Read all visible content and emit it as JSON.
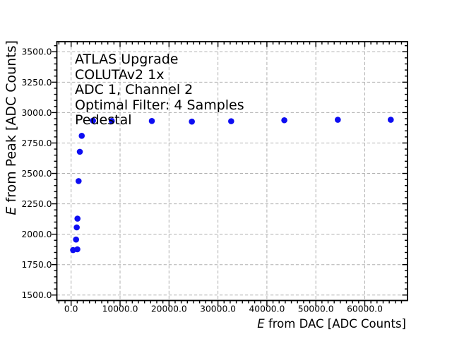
{
  "figure": {
    "background": "#ffffff"
  },
  "annotation": {
    "lines": [
      "ATLAS Upgrade",
      "COLUTAv2 1x",
      "ADC 1, Channel 2",
      "Optimal Filter: 4 Samples",
      "Pedestal"
    ]
  },
  "axes": {
    "x_label_em": "E",
    "x_label_rest": " from DAC [ADC Counts]",
    "y_label_em": "E",
    "y_label_rest": " from Peak [ADC Counts]"
  },
  "chart_data": {
    "type": "scatter",
    "title": "",
    "xlabel": "E from DAC [ADC Counts]",
    "ylabel": "E from Peak [ADC Counts]",
    "x_range": [
      -2915,
      68730
    ],
    "y_range": [
      1455,
      3583
    ],
    "x_ticks": [
      0,
      10000,
      20000,
      30000,
      40000,
      50000,
      60000
    ],
    "x_tick_labels": [
      "0.0",
      "10000.0",
      "20000.0",
      "30000.0",
      "40000.0",
      "50000.0",
      "60000.0"
    ],
    "y_ticks": [
      1500,
      1750,
      2000,
      2250,
      2500,
      2750,
      3000,
      3250,
      3500
    ],
    "y_tick_labels": [
      "1500.0",
      "1750.0",
      "2000.0",
      "2250.0",
      "2500.0",
      "2750.0",
      "3000.0",
      "3250.0",
      "3500.0"
    ],
    "x_minor_step": 1250,
    "y_minor_step": 50,
    "grid": "major-dashed",
    "grid_color": "#b0b0b0",
    "axis_color": "#000000",
    "series": [
      {
        "name": "peak-vs-dac",
        "marker_color": "#0d0df2",
        "points": [
          [
            400,
            1870
          ],
          [
            1270,
            1876
          ],
          [
            1010,
            1956
          ],
          [
            1150,
            2056
          ],
          [
            1300,
            2128
          ],
          [
            1530,
            2437
          ],
          [
            1780,
            2678
          ],
          [
            2170,
            2809
          ],
          [
            4470,
            2934
          ],
          [
            8310,
            2931
          ],
          [
            16490,
            2931
          ],
          [
            24670,
            2926
          ],
          [
            32700,
            2929
          ],
          [
            43560,
            2937
          ],
          [
            54490,
            2941
          ],
          [
            65310,
            2941
          ]
        ]
      }
    ],
    "legend": "none"
  }
}
